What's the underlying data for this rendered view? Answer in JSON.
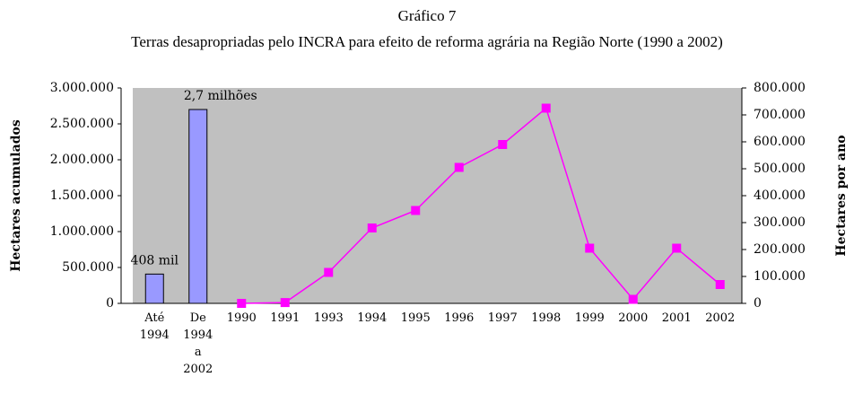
{
  "chart_data": {
    "type": "bar-line",
    "title": "Gráfico 7",
    "subtitle": "Terras desapropriadas pelo INCRA para efeito de reforma agrária na Região Norte (1990 a 2002)",
    "y_label": "Hectares acumulados",
    "y2_label": "Hectares por ano",
    "categories": [
      "Até 1994",
      "De 1994 a 2002",
      "1990",
      "1991",
      "1993",
      "1994",
      "1995",
      "1996",
      "1997",
      "1998",
      "1999",
      "2000",
      "2001",
      "2002"
    ],
    "series": [
      {
        "type": "bar",
        "color": "#9999ff",
        "values": [
          408000,
          2700000,
          null,
          null,
          null,
          null,
          null,
          null,
          null,
          null,
          null,
          null,
          null,
          null
        ],
        "value_labels": [
          "408 mil",
          "2,7 milhões",
          null,
          null,
          null,
          null,
          null,
          null,
          null,
          null,
          null,
          null,
          null,
          null
        ]
      },
      {
        "type": "line",
        "axis": "y2",
        "color": "#ff00ff",
        "values": [
          null,
          null,
          0,
          3000,
          115000,
          280000,
          345000,
          505000,
          590000,
          725000,
          205000,
          15000,
          205000,
          70000
        ]
      }
    ],
    "ylim": [
      0,
      3000000
    ],
    "yticks": [
      0,
      {
        "value": 500000,
        "label": "500.000"
      },
      {
        "value": 1000000,
        "label": "1.000.000"
      },
      {
        "value": 1500000,
        "label": "1.500.000"
      },
      {
        "value": 2000000,
        "label": "2.000.000"
      },
      {
        "value": 2500000,
        "label": "2.500.000"
      },
      {
        "value": 3000000,
        "label": "3.000.000"
      }
    ],
    "y2lim": [
      0,
      800000
    ],
    "y2ticks": [
      0,
      {
        "value": 100000,
        "label": "100.000"
      },
      {
        "value": 200000,
        "label": "200.000"
      },
      {
        "value": 300000,
        "label": "300.000"
      },
      {
        "value": 400000,
        "label": "400.000"
      },
      {
        "value": 500000,
        "label": "500.000"
      },
      {
        "value": 600000,
        "label": "600.000"
      },
      {
        "value": 700000,
        "label": "700.000"
      },
      {
        "value": 800000,
        "label": "800.000"
      }
    ],
    "plot_background": "#c0c0c0"
  }
}
